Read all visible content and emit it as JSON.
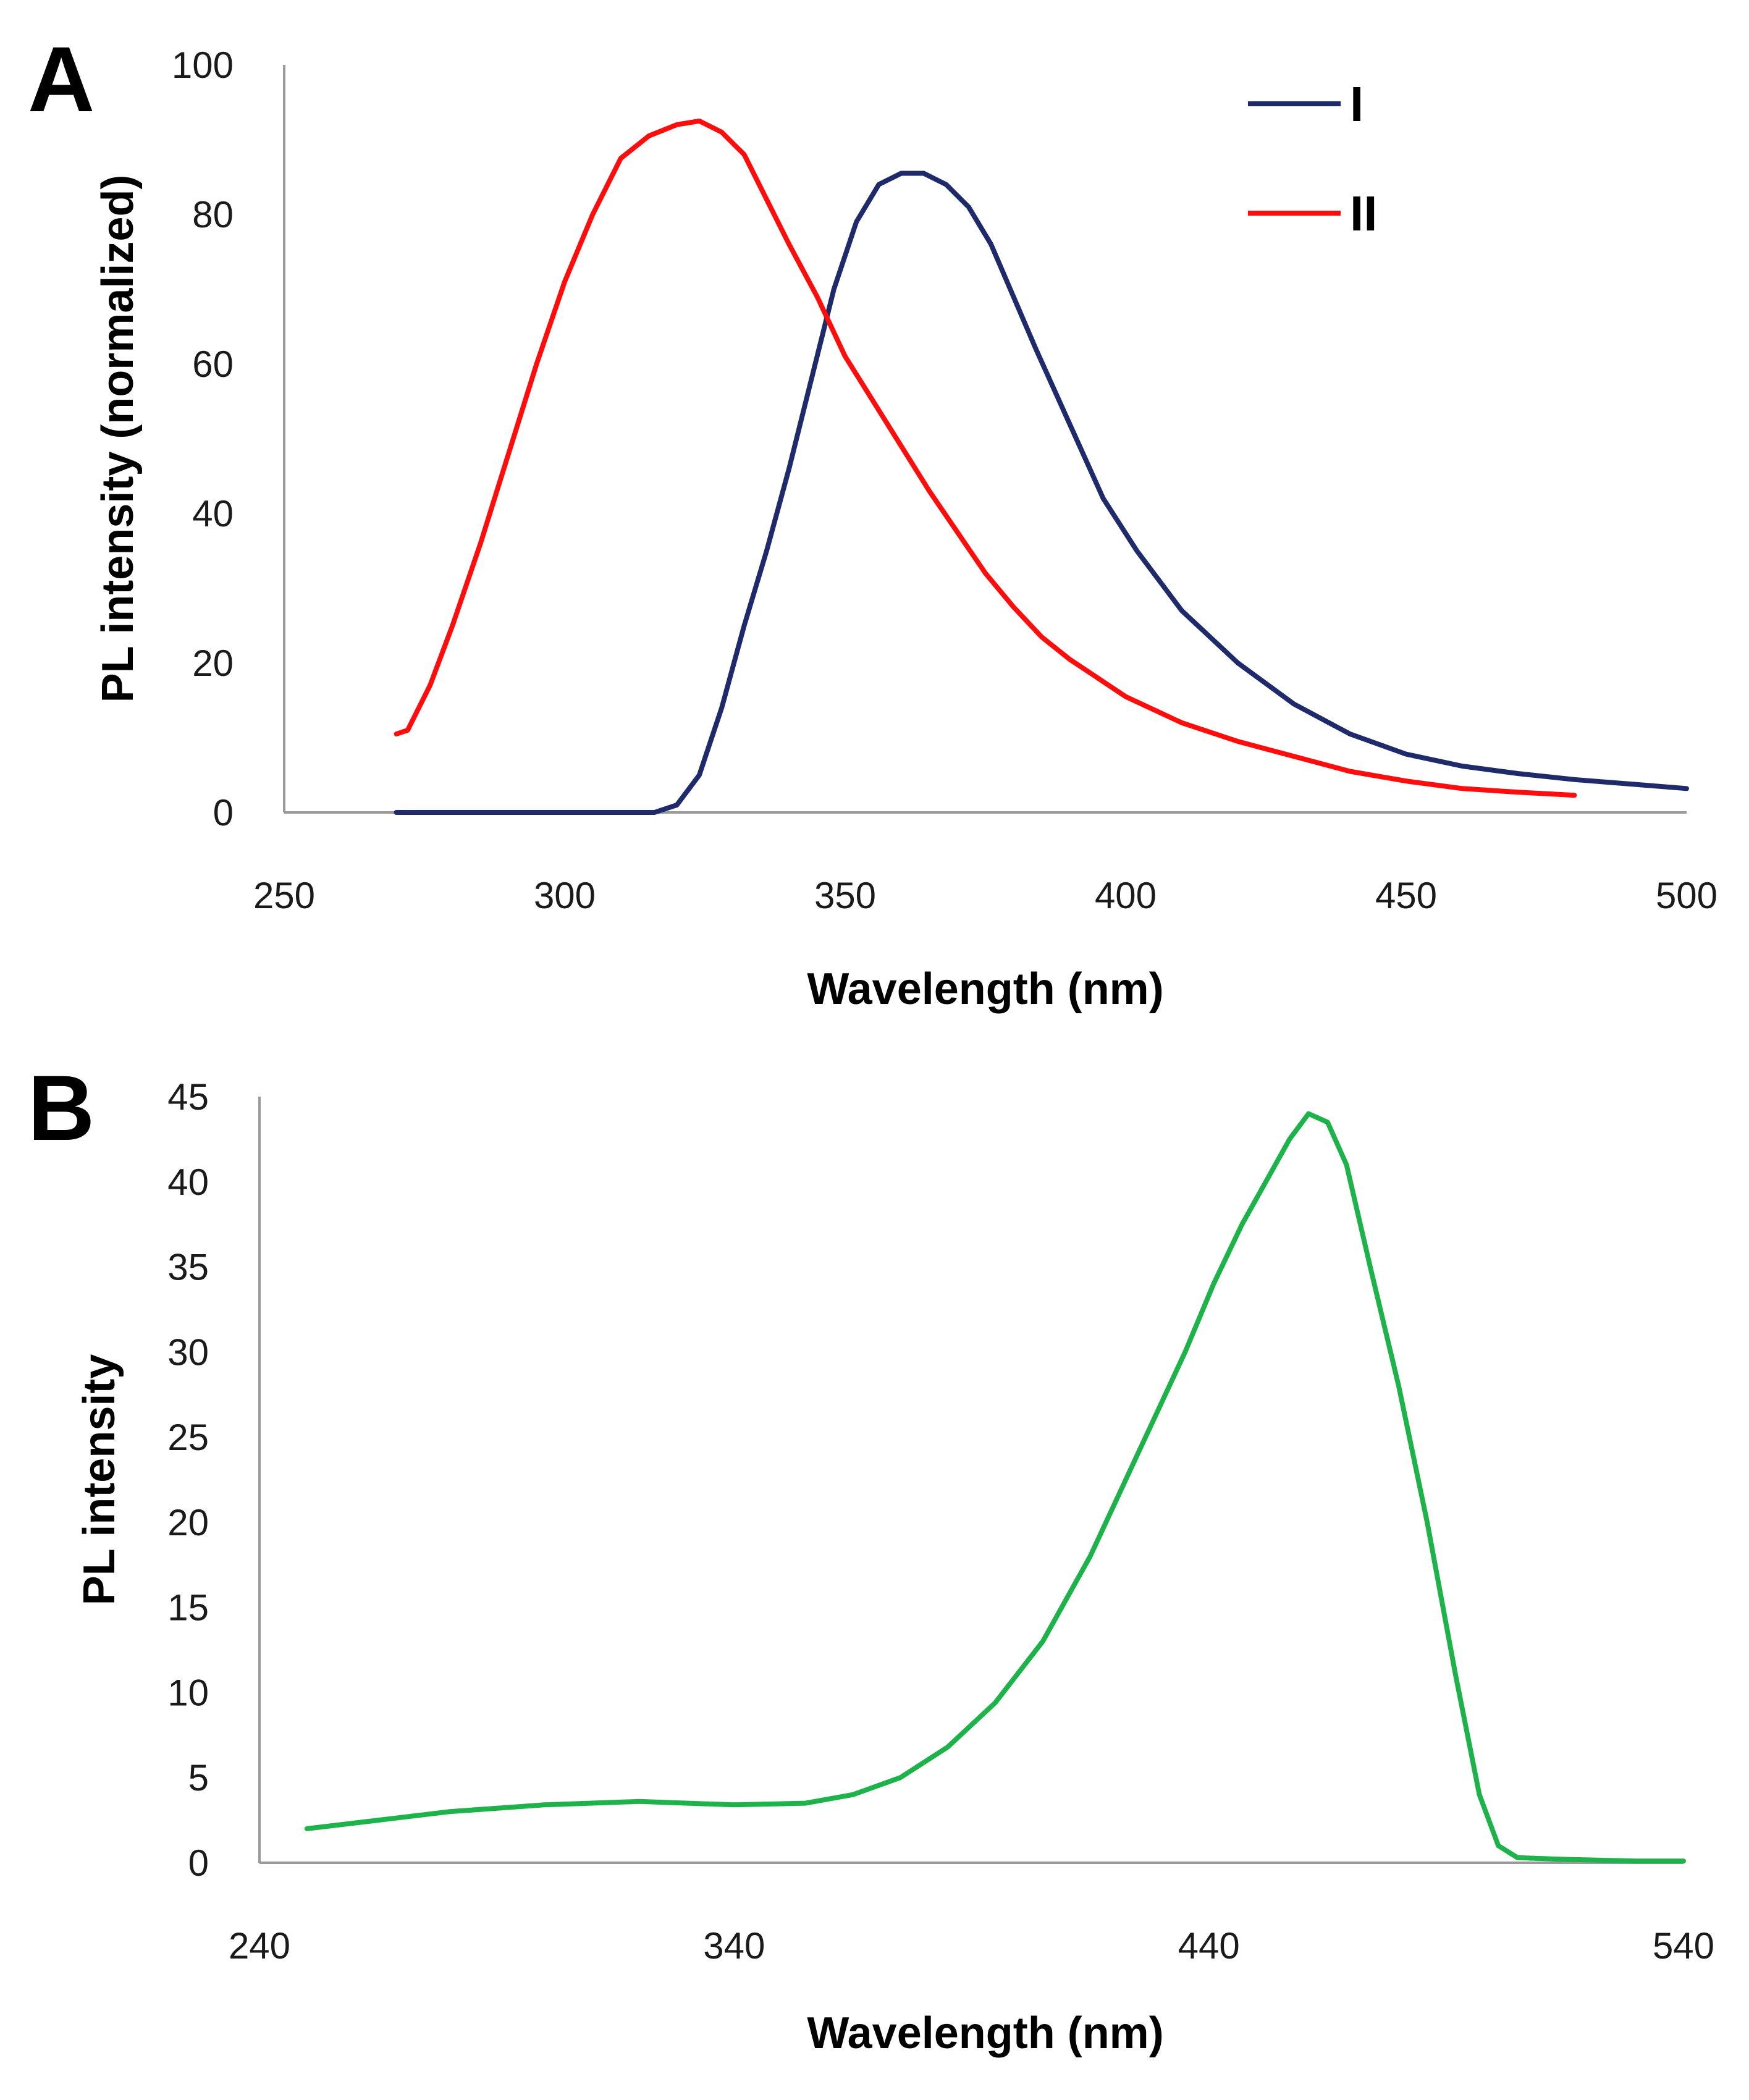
{
  "chart_data": [
    {
      "type": "line",
      "panel_label": "A",
      "xlabel": "Wavelength (nm)",
      "ylabel": "PL intensity (normalized)",
      "xlim": [
        250,
        500
      ],
      "ylim": [
        0,
        100
      ],
      "xticks": [
        250,
        300,
        350,
        400,
        450,
        500
      ],
      "yticks": [
        0,
        20,
        40,
        60,
        80,
        100
      ],
      "grid": false,
      "legend_position": "top-right",
      "series": [
        {
          "name": "I",
          "color": "#1f2a6b",
          "points": [
            [
              270,
              0
            ],
            [
              300,
              0
            ],
            [
              316,
              0
            ],
            [
              320,
              1
            ],
            [
              324,
              5
            ],
            [
              328,
              14
            ],
            [
              332,
              25
            ],
            [
              336,
              35
            ],
            [
              340,
              46
            ],
            [
              344,
              58
            ],
            [
              348,
              70
            ],
            [
              352,
              79
            ],
            [
              356,
              84
            ],
            [
              360,
              85.5
            ],
            [
              364,
              85.5
            ],
            [
              368,
              84
            ],
            [
              372,
              81
            ],
            [
              376,
              76
            ],
            [
              380,
              69
            ],
            [
              384,
              62
            ],
            [
              390,
              52
            ],
            [
              396,
              42
            ],
            [
              402,
              35
            ],
            [
              410,
              27
            ],
            [
              420,
              20
            ],
            [
              430,
              14.5
            ],
            [
              440,
              10.5
            ],
            [
              450,
              7.8
            ],
            [
              460,
              6.2
            ],
            [
              470,
              5.2
            ],
            [
              480,
              4.4
            ],
            [
              490,
              3.8
            ],
            [
              500,
              3.2
            ]
          ]
        },
        {
          "name": "II",
          "color": "#ff0d0d",
          "points": [
            [
              270,
              10.5
            ],
            [
              272,
              11
            ],
            [
              276,
              17
            ],
            [
              280,
              25
            ],
            [
              285,
              36
            ],
            [
              290,
              48
            ],
            [
              295,
              60
            ],
            [
              300,
              71
            ],
            [
              305,
              80
            ],
            [
              310,
              87.5
            ],
            [
              315,
              90.5
            ],
            [
              320,
              92
            ],
            [
              324,
              92.5
            ],
            [
              328,
              91
            ],
            [
              332,
              88
            ],
            [
              336,
              82
            ],
            [
              340,
              76
            ],
            [
              345,
              69
            ],
            [
              350,
              61
            ],
            [
              355,
              55
            ],
            [
              360,
              49
            ],
            [
              365,
              43
            ],
            [
              370,
              37.5
            ],
            [
              375,
              32
            ],
            [
              380,
              27.5
            ],
            [
              385,
              23.5
            ],
            [
              390,
              20.5
            ],
            [
              395,
              18
            ],
            [
              400,
              15.5
            ],
            [
              410,
              12
            ],
            [
              420,
              9.5
            ],
            [
              430,
              7.5
            ],
            [
              440,
              5.5
            ],
            [
              450,
              4.2
            ],
            [
              460,
              3.2
            ],
            [
              470,
              2.7
            ],
            [
              480,
              2.3
            ]
          ]
        }
      ]
    },
    {
      "type": "line",
      "panel_label": "B",
      "xlabel": "Wavelength (nm)",
      "ylabel": "PL intensity",
      "xlim": [
        240,
        540
      ],
      "ylim": [
        0,
        45
      ],
      "xticks": [
        240,
        340,
        440,
        540
      ],
      "yticks": [
        0,
        5,
        10,
        15,
        20,
        25,
        30,
        35,
        40,
        45
      ],
      "grid": false,
      "series": [
        {
          "name": "",
          "color": "#1db34a",
          "points": [
            [
              250,
              2
            ],
            [
              265,
              2.5
            ],
            [
              280,
              3.0
            ],
            [
              300,
              3.4
            ],
            [
              320,
              3.6
            ],
            [
              340,
              3.4
            ],
            [
              355,
              3.5
            ],
            [
              365,
              4.0
            ],
            [
              375,
              5.0
            ],
            [
              385,
              6.8
            ],
            [
              395,
              9.4
            ],
            [
              405,
              13
            ],
            [
              415,
              18
            ],
            [
              425,
              24
            ],
            [
              435,
              30
            ],
            [
              441,
              34
            ],
            [
              447,
              37.5
            ],
            [
              452,
              40
            ],
            [
              457,
              42.5
            ],
            [
              461,
              44
            ],
            [
              465,
              43.5
            ],
            [
              469,
              41
            ],
            [
              474,
              35
            ],
            [
              480,
              28
            ],
            [
              486,
              20
            ],
            [
              492,
              11
            ],
            [
              497,
              4
            ],
            [
              501,
              1
            ],
            [
              505,
              0.3
            ],
            [
              515,
              0.2
            ],
            [
              530,
              0.1
            ],
            [
              540,
              0.1
            ]
          ]
        }
      ]
    }
  ]
}
